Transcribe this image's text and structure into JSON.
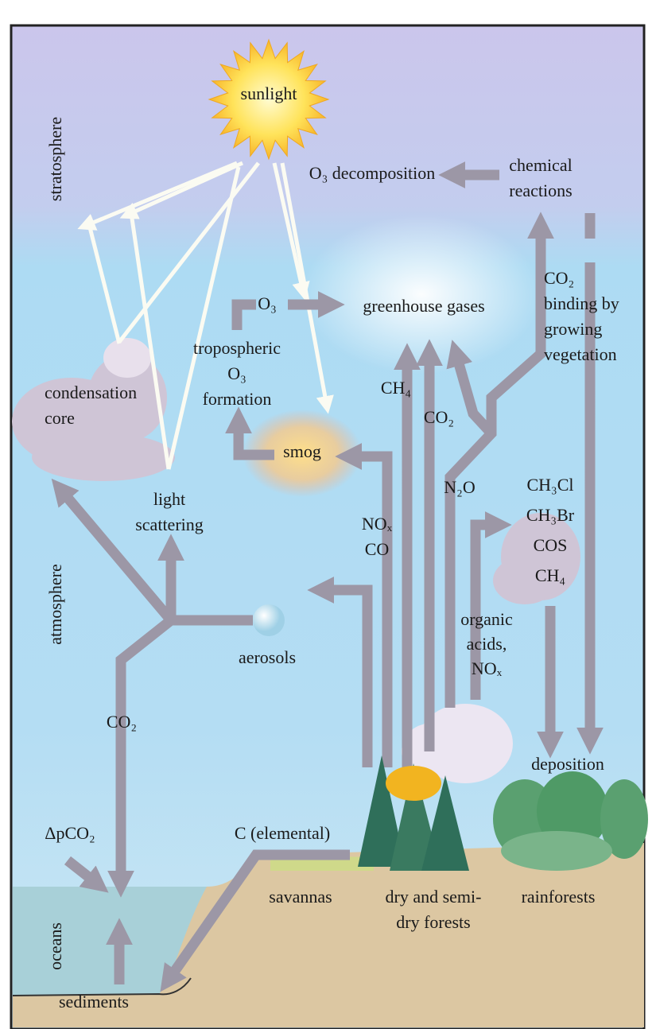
{
  "labels": [
    {
      "lines": [
        "sunlight"
      ]
    },
    {
      "lines": [
        "stratosphere"
      ]
    },
    {
      "lines": [
        "atmosphere"
      ]
    },
    {
      "lines": [
        "oceans"
      ]
    },
    {
      "lines": [
        "O₃ decomposition"
      ]
    },
    {
      "lines": [
        "chemical",
        "reactions"
      ]
    },
    {
      "lines": [
        "CO₂",
        "binding by",
        "growing",
        "vegetation"
      ]
    },
    {
      "lines": [
        "O₃"
      ]
    },
    {
      "lines": [
        "greenhouse gases"
      ]
    },
    {
      "lines": [
        "tropospheric",
        "O₃",
        "formation"
      ]
    },
    {
      "lines": [
        "condensation",
        "core"
      ]
    },
    {
      "lines": [
        "CH₄"
      ]
    },
    {
      "lines": [
        "CO₂"
      ]
    },
    {
      "lines": [
        "smog"
      ]
    },
    {
      "lines": [
        "N₂O"
      ]
    },
    {
      "lines": [
        "CH₃Cl",
        "CH₃Br",
        "COS",
        "CH₄"
      ]
    },
    {
      "lines": [
        "NOₓ",
        "CO"
      ]
    },
    {
      "lines": [
        "light",
        "scattering"
      ]
    },
    {
      "lines": [
        "organic",
        "acids,",
        "NOₓ"
      ]
    },
    {
      "lines": [
        "aerosols"
      ]
    },
    {
      "lines": [
        "CO₂"
      ]
    },
    {
      "lines": [
        "deposition"
      ]
    },
    {
      "lines": [
        "ΔpCO₂"
      ]
    },
    {
      "lines": [
        "C (elemental)"
      ]
    },
    {
      "lines": [
        "savannas"
      ]
    },
    {
      "lines": [
        "dry and semi-",
        "dry forests"
      ]
    },
    {
      "lines": [
        "rainforests"
      ]
    },
    {
      "lines": [
        "sediments"
      ]
    }
  ]
}
